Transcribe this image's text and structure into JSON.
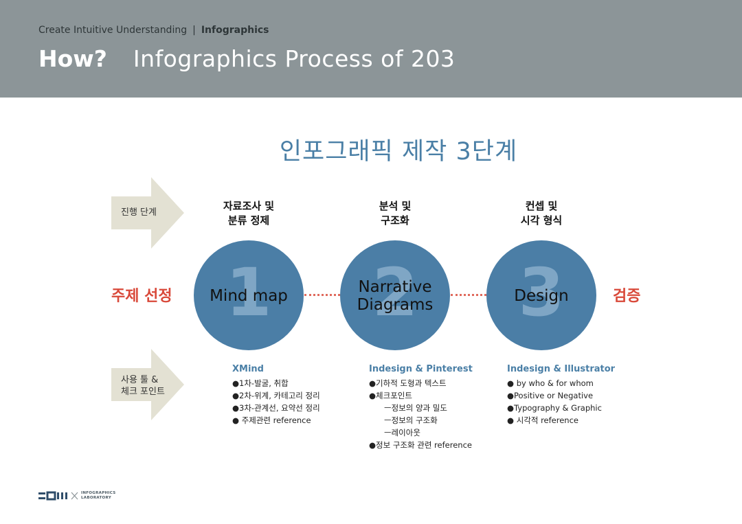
{
  "header": {
    "breadcrumb_section": "Create Intuitive Understanding",
    "breadcrumb_separator": "|",
    "breadcrumb_current": "Infographics",
    "title_strong": "How?",
    "title_rest": "Infographics Process of 203"
  },
  "main_title": "인포그래픽 제작 3단계",
  "rows": {
    "stage_row_label": "진행 단계",
    "tools_row_label_line1": "사용 툴 &",
    "tools_row_label_line2": "체크 포인트"
  },
  "start_label": "주제 선정",
  "end_label": "검증",
  "steps": [
    {
      "number": "1",
      "stage_line1": "자료조사 및",
      "stage_line2": "분류 정제",
      "name_line1": "Mind map",
      "tool_title": "XMind",
      "items": [
        "●1차-발굴, 취합",
        "●2차-위계, 카테고리 정리",
        "●3차-관계선, 요약선 정리",
        "● 주제관련 reference"
      ]
    },
    {
      "number": "2",
      "stage_line1": "분석 및",
      "stage_line2": "구조화",
      "name_line1": "Narrative",
      "name_line2": "Diagrams",
      "tool_title": "Indesign & Pinterest",
      "items": [
        "●기하적 도형과 텍스트",
        "●체크포인트",
        "ㅡ정보의 양과 밀도",
        "ㅡ정보의 구조화",
        "ㅡ레이아웃",
        "●정보 구조화 관련 reference"
      ]
    },
    {
      "number": "3",
      "stage_line1": "컨셉 및",
      "stage_line2": "시각 형식",
      "name_line1": "Design",
      "tool_title": "Indesign & Illustrator",
      "items": [
        "● by who & for whom",
        "●Positive or Negative",
        "●Typography & Graphic",
        "● 시각적 reference"
      ]
    }
  ],
  "footer": {
    "logo_line1": "INFOGRAPHICS",
    "logo_line2": "LABORATORY"
  },
  "colors": {
    "header_bg": "#8c9598",
    "circle": "#4b7ea6",
    "accent_red": "#d9493a",
    "title_blue": "#4a7fa6",
    "arrow": "#e3e1d3"
  }
}
